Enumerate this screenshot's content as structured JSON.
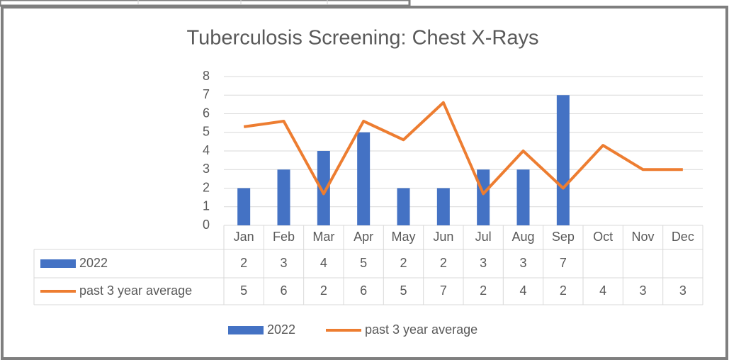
{
  "chart_data": {
    "type": "bar_line",
    "title": "Tuberculosis Screening: Chest X-Rays",
    "categories": [
      "Jan",
      "Feb",
      "Mar",
      "Apr",
      "May",
      "Jun",
      "Jul",
      "Aug",
      "Sep",
      "Oct",
      "Nov",
      "Dec"
    ],
    "series": [
      {
        "name": "2022",
        "type": "bar",
        "color": "#4472c4",
        "values": [
          2,
          3,
          4,
          5,
          2,
          2,
          3,
          3,
          7,
          null,
          null,
          null
        ]
      },
      {
        "name": "past 3 year average",
        "type": "line",
        "color": "#ed7d31",
        "values": [
          5.3,
          5.6,
          1.7,
          5.6,
          4.6,
          6.6,
          1.7,
          4.0,
          2.0,
          4.3,
          3.0,
          3.0
        ],
        "value_labels": [
          "5",
          "6",
          "2",
          "6",
          "5",
          "7",
          "2",
          "4",
          "2",
          "4",
          "3",
          "3"
        ]
      }
    ],
    "ylim": [
      0,
      8
    ],
    "yticks": [
      0,
      1,
      2,
      3,
      4,
      5,
      6,
      7,
      8
    ],
    "grid": true,
    "legend": "bottom"
  }
}
